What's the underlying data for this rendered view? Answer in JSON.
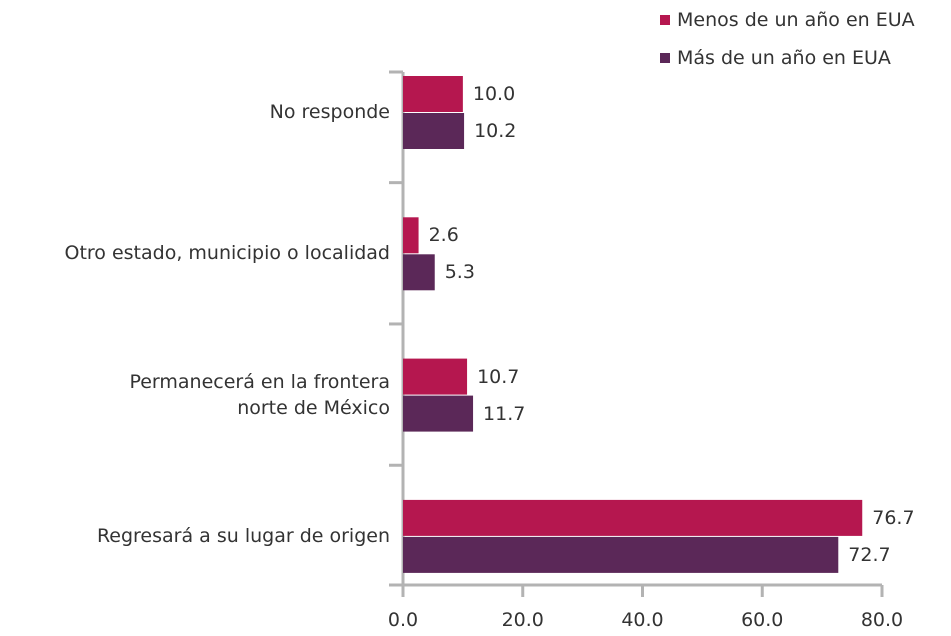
{
  "chart_data": {
    "type": "bar",
    "orientation": "horizontal",
    "categories": [
      "No responde",
      "Otro estado, municipio o localidad",
      "Permanecerá en la frontera\nnorte de México",
      "Regresará a su lugar de origen"
    ],
    "series": [
      {
        "name": "Menos de un año en EUA",
        "color": "#b5174f",
        "values": [
          10.0,
          2.6,
          10.7,
          76.7
        ],
        "value_labels": [
          "10.0",
          "2.6",
          "10.7",
          "76.7"
        ]
      },
      {
        "name": "Más de un año en EUA",
        "color": "#5b2858",
        "values": [
          10.2,
          5.3,
          11.7,
          72.7
        ],
        "value_labels": [
          "10.2",
          "5.3",
          "11.7",
          "72.7"
        ]
      }
    ],
    "xlim": [
      0,
      80
    ],
    "xticks": [
      {
        "value": 0,
        "label": "0.0"
      },
      {
        "value": 20,
        "label": "20.0"
      },
      {
        "value": 40,
        "label": "40.0"
      },
      {
        "value": 60,
        "label": "60.0"
      },
      {
        "value": 80,
        "label": "80.0"
      }
    ],
    "legend": "top-right"
  }
}
